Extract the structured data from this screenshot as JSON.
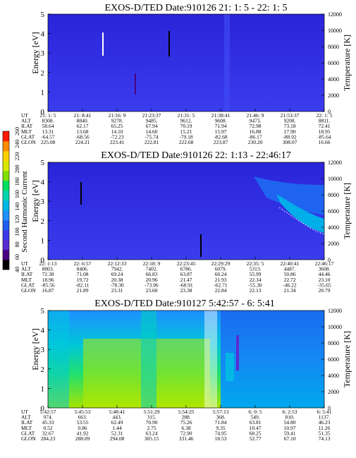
{
  "colorbar": {
    "label": "Second Harmonic Current",
    "ticks": [
      "40",
      "60",
      "80",
      "100",
      "120",
      "140",
      "160",
      "180",
      "200",
      "220",
      "240",
      "260"
    ],
    "colors": [
      "#000000",
      "#4b0082",
      "#5a2bd0",
      "#3a3ae8",
      "#1f5ff0",
      "#1e90ff",
      "#00b7e6",
      "#00d7b0",
      "#00e060",
      "#7ee000",
      "#d8e800",
      "#ffd000",
      "#ff8c00",
      "#ff1a00"
    ]
  },
  "palette": {
    "background": "#5a2bd0",
    "panel_lower": "#3c3cf0",
    "panel_upper": "#2626e0",
    "text": "#000000",
    "streak": "#ffffff"
  },
  "chart_data": [
    {
      "type": "heatmap",
      "title": "EXOS-D/TED   Date:910126  21: 1: 5 - 22: 1: 5",
      "ylabel": "Energy [eV]",
      "ylabel_right": "Temperature [K]",
      "ylim": [
        0,
        5
      ],
      "yticks": [
        "0",
        "1",
        "2",
        "3",
        "4",
        "5"
      ],
      "ylim_right": [
        0,
        12000
      ],
      "yticks_right": [
        "0",
        "2000",
        "4000",
        "6000",
        "8000",
        "10000",
        "12000"
      ],
      "row_labels": [
        "UT",
        "ALT",
        "ILAT",
        "MLT",
        "GLAT",
        "GLON"
      ],
      "columns": [
        [
          "21: 1: 5",
          "8308.",
          "58.64",
          "13.31",
          "-64.57",
          "225.08"
        ],
        [
          "21: 8:41",
          "8840.",
          "62.17",
          "13.68",
          "-68.56",
          "224.21"
        ],
        [
          "21:16: 9",
          "9278.",
          "65.25",
          "14.10",
          "-72.23",
          "223.41"
        ],
        [
          "21:23:37",
          "9485.",
          "67.94",
          "14.60",
          "-75.74",
          "222.81"
        ],
        [
          "21:31: 5",
          "9612.",
          "70.19",
          "15.21",
          "-79.18",
          "222.68"
        ],
        [
          "21:38:41",
          "9608.",
          "71.94",
          "15.97",
          "-82.68",
          "223.87"
        ],
        [
          "21:46: 9",
          "9473.",
          "72.98",
          "16.88",
          "-86.17",
          "230.20"
        ],
        [
          "21:53:37",
          "9208.",
          "73.18",
          "17.90",
          "-88.92",
          "308.07"
        ],
        [
          "22: 1: 5",
          "8811.",
          "72.41",
          "18.95",
          "-85.64",
          "16.66"
        ]
      ]
    },
    {
      "type": "heatmap",
      "title": "EXOS-D/TED   Date:910126  22: 1:13 - 22:46:17",
      "ylabel": "Energy [eV]",
      "ylabel_right": "Temperature [K]",
      "ylim": [
        0,
        5
      ],
      "yticks": [
        "0",
        "1",
        "2",
        "3",
        "4",
        "5"
      ],
      "ylim_right": [
        0,
        12000
      ],
      "yticks_right": [
        "0",
        "2000",
        "4000",
        "6000",
        "8000",
        "10000",
        "12000"
      ],
      "row_labels": [
        "UT",
        "ALT",
        "ILAT",
        "MLT",
        "GLAT",
        "GLON"
      ],
      "columns": [
        [
          "22: 1:13",
          "8803.",
          "72.38",
          "18.96",
          "-85.56",
          "16.87"
        ],
        [
          "22: 6:57",
          "8406.",
          "71.08",
          "19.72",
          "-82.11",
          "21.89"
        ],
        [
          "22:12:33",
          "7942.",
          "69.24",
          "20.38",
          "-78.30",
          "23.31"
        ],
        [
          "22:18: 9",
          "7402.",
          "66.83",
          "20.96",
          "-73.96",
          "23.60"
        ],
        [
          "22:23:45",
          "6786.",
          "63.87",
          "21.47",
          "-68.91",
          "23.38"
        ],
        [
          "22:29:29",
          "6079.",
          "60.24",
          "21.93",
          "-62.71",
          "22.84"
        ],
        [
          "22:35: 5",
          "5313.",
          "55.99",
          "22.34",
          "-55.30",
          "22.13"
        ],
        [
          "22:40:41",
          "4487.",
          "50.86",
          "22.72",
          "-46.22",
          "21.34"
        ],
        [
          "22:46:17",
          "3608.",
          "44.46",
          "23.10",
          "-35.65",
          "20.79"
        ]
      ]
    },
    {
      "type": "heatmap",
      "title": "EXOS-D/TED   Date:910127   5:42:57 -  6: 5:41",
      "ylabel": "Energy [eV]",
      "ylabel_right": "Temperature [K]",
      "ylim": [
        0,
        5
      ],
      "yticks": [
        "0",
        "1",
        "2",
        "3",
        "4",
        "5"
      ],
      "ylim_right": [
        0,
        12000
      ],
      "yticks_right": [
        "0",
        "2000",
        "4000",
        "6000",
        "8000",
        "10000",
        "12000"
      ],
      "row_labels": [
        "UT",
        "ALT",
        "ILAT",
        "MLT",
        "GLAT",
        "GLON"
      ],
      "columns": [
        [
          "5:42:57",
          "974.",
          "45.33",
          "0.52",
          "32.67",
          "284.23"
        ],
        [
          "5:45:53",
          "663.",
          "53.55",
          "0.86",
          "41.92",
          "288.09"
        ],
        [
          "5:48:41",
          "443.",
          "62.49",
          "1.44",
          "52.31",
          "294.08"
        ],
        [
          "5:51:29",
          "315.",
          "70.90",
          "2.75",
          "63.24",
          "305.15"
        ],
        [
          "5:54:25",
          "288.",
          "75.26",
          "6.38",
          "72.90",
          "331.46"
        ],
        [
          "5:57:13",
          "368.",
          "71.84",
          "9.35",
          "74.95",
          "18.53"
        ],
        [
          "6: 0: 5",
          "549.",
          "63.81",
          "10.47",
          "68.25",
          "52.77"
        ],
        [
          "6: 2:53",
          "810.",
          "54.80",
          "10.97",
          "59.41",
          "67.10"
        ],
        [
          "6: 5:41",
          "1137.",
          "46.23",
          "11.26",
          "51.35",
          "74.13"
        ]
      ]
    }
  ]
}
